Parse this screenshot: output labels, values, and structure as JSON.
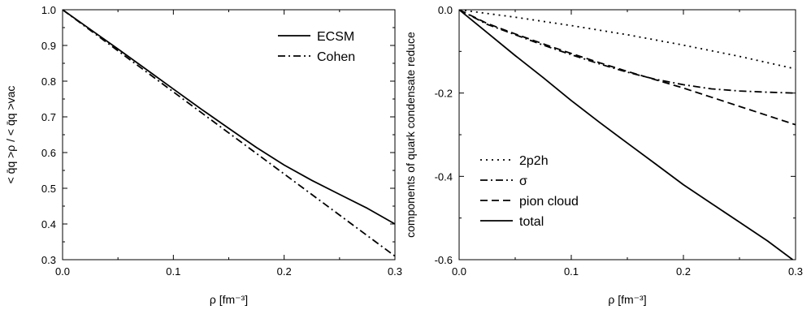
{
  "chart_data": [
    {
      "type": "line",
      "xlabel": "ρ  [fm⁻³]",
      "ylabel": "< q̄q >ρ / < q̄q >vac",
      "xlim": [
        0.0,
        0.3
      ],
      "ylim": [
        0.3,
        1.0
      ],
      "xticks": [
        "0.0",
        "0.1",
        "0.2",
        "0.3"
      ],
      "yticks": [
        "0.3",
        "0.4",
        "0.5",
        "0.6",
        "0.7",
        "0.8",
        "0.9",
        "1.0"
      ],
      "legend_position": "top-right",
      "series": [
        {
          "name": "ECSM",
          "style": "solid",
          "x": [
            0.0,
            0.025,
            0.05,
            0.075,
            0.1,
            0.125,
            0.15,
            0.175,
            0.2,
            0.225,
            0.25,
            0.275,
            0.3
          ],
          "y": [
            1.0,
            0.945,
            0.89,
            0.834,
            0.778,
            0.722,
            0.668,
            0.614,
            0.565,
            0.522,
            0.483,
            0.444,
            0.4
          ]
        },
        {
          "name": "Cohen",
          "style": "dash-dot",
          "x": [
            0.0,
            0.05,
            0.1,
            0.15,
            0.2,
            0.25,
            0.3
          ],
          "y": [
            1.0,
            0.885,
            0.77,
            0.655,
            0.54,
            0.425,
            0.31
          ]
        }
      ]
    },
    {
      "type": "line",
      "xlabel": "ρ  [fm⁻³]",
      "ylabel": "components of quark condensate reduce",
      "xlim": [
        0.0,
        0.3
      ],
      "ylim": [
        -0.6,
        0.0
      ],
      "xticks": [
        "0.0",
        "0.1",
        "0.2",
        "0.3"
      ],
      "yticks": [
        "0.0",
        "-0.2",
        "-0.4",
        "-0.6"
      ],
      "legend_position": "bottom-left",
      "series": [
        {
          "name": "2p2h",
          "style": "dotted",
          "x": [
            0.0,
            0.05,
            0.1,
            0.15,
            0.2,
            0.25,
            0.3
          ],
          "y": [
            0.0,
            -0.018,
            -0.038,
            -0.06,
            -0.085,
            -0.112,
            -0.142
          ]
        },
        {
          "name": "σ",
          "style": "dash-dot",
          "x": [
            0.0,
            0.025,
            0.05,
            0.075,
            0.1,
            0.125,
            0.15,
            0.175,
            0.2,
            0.225,
            0.25,
            0.275,
            0.3
          ],
          "y": [
            0.0,
            -0.035,
            -0.06,
            -0.085,
            -0.108,
            -0.13,
            -0.15,
            -0.167,
            -0.18,
            -0.19,
            -0.195,
            -0.198,
            -0.2
          ]
        },
        {
          "name": "pion cloud",
          "style": "dashed",
          "x": [
            0.0,
            0.025,
            0.05,
            0.075,
            0.1,
            0.125,
            0.15,
            0.175,
            0.2,
            0.225,
            0.25,
            0.275,
            0.3
          ],
          "y": [
            0.0,
            -0.033,
            -0.058,
            -0.082,
            -0.105,
            -0.127,
            -0.148,
            -0.168,
            -0.188,
            -0.21,
            -0.232,
            -0.254,
            -0.276
          ]
        },
        {
          "name": "total",
          "style": "solid",
          "x": [
            0.0,
            0.025,
            0.05,
            0.075,
            0.1,
            0.125,
            0.15,
            0.175,
            0.2,
            0.225,
            0.25,
            0.275,
            0.3
          ],
          "y": [
            0.0,
            -0.055,
            -0.11,
            -0.163,
            -0.218,
            -0.27,
            -0.32,
            -0.37,
            -0.42,
            -0.465,
            -0.51,
            -0.555,
            -0.605
          ]
        }
      ]
    }
  ]
}
